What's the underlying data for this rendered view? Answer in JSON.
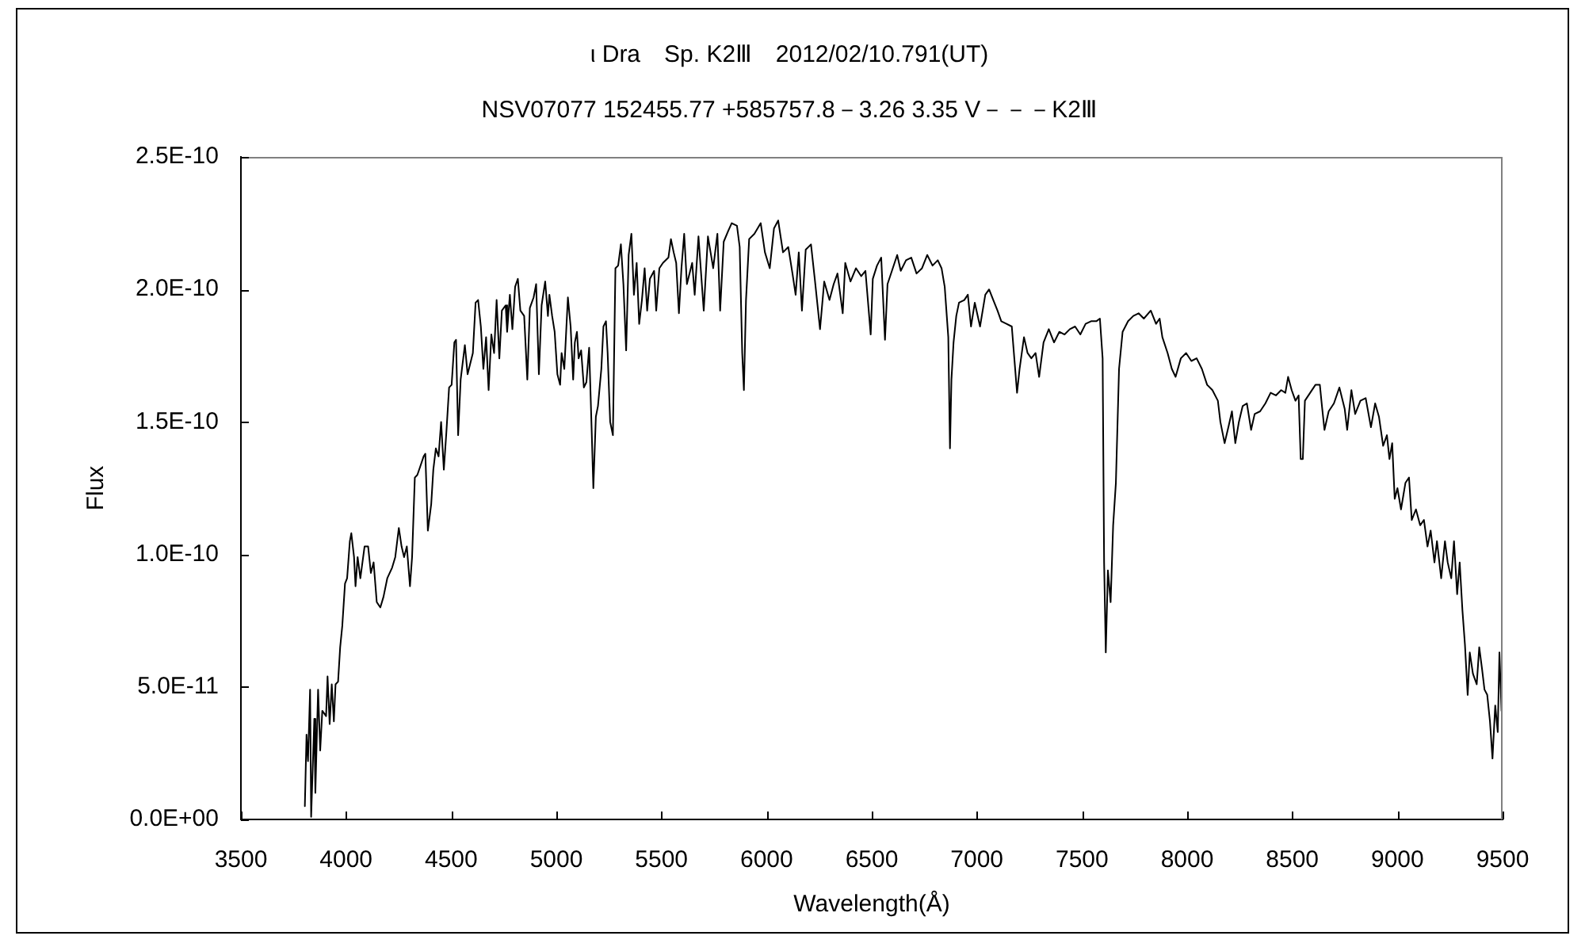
{
  "chart_data": {
    "type": "line",
    "title": "ι Dra　Sp. K2Ⅲ　2012/02/10.791(UT)",
    "subtitle": "NSV07077 152455.77 +585757.8－3.26 3.35 V－－－K2Ⅲ",
    "xlabel": "Wavelength(Å)",
    "ylabel": "Flux",
    "xlim": [
      3500,
      9500
    ],
    "xticks": [
      3500,
      4000,
      4500,
      5000,
      5500,
      6000,
      6500,
      7000,
      7500,
      8000,
      8500,
      9000,
      9500
    ],
    "ylim": [
      0,
      2.5e-10
    ],
    "yticks": [
      {
        "value": 0,
        "label": "0.0E+00"
      },
      {
        "value": 5e-11,
        "label": "5.0E-11"
      },
      {
        "value": 1e-10,
        "label": "1.0E-10"
      },
      {
        "value": 1.5e-10,
        "label": "1.5E-10"
      },
      {
        "value": 2e-10,
        "label": "2.0E-10"
      },
      {
        "value": 2.5e-10,
        "label": "2.5E-10"
      }
    ],
    "marker": "none",
    "line_style": "solid",
    "series": [
      {
        "color": "#000000",
        "x": [
          3804,
          3812,
          3819,
          3829,
          3834,
          3849,
          3854,
          3867,
          3877,
          3887,
          3905,
          3912,
          3922,
          3932,
          3942,
          3950,
          3962,
          3972,
          3982,
          3995,
          4005,
          4018,
          4025,
          4038,
          4045,
          4055,
          4068,
          4088,
          4105,
          4118,
          4131,
          4146,
          4163,
          4178,
          4196,
          4219,
          4234,
          4251,
          4264,
          4276,
          4289,
          4304,
          4314,
          4327,
          4339,
          4352,
          4369,
          4377,
          4389,
          4405,
          4415,
          4427,
          4440,
          4452,
          4465,
          4477,
          4490,
          4502,
          4515,
          4523,
          4533,
          4545,
          4565,
          4578,
          4603,
          4616,
          4628,
          4641,
          4653,
          4666,
          4678,
          4691,
          4704,
          4716,
          4729,
          4741,
          4759,
          4766,
          4779,
          4791,
          4804,
          4817,
          4829,
          4847,
          4862,
          4874,
          4892,
          4904,
          4917,
          4930,
          4947,
          4960,
          4967,
          4980,
          4992,
          5005,
          5018,
          5025,
          5038,
          5048,
          5055,
          5068,
          5080,
          5088,
          5098,
          5106,
          5118,
          5131,
          5143,
          5156,
          5168,
          5176,
          5188,
          5198,
          5214,
          5224,
          5236,
          5244,
          5256,
          5269,
          5281,
          5294,
          5307,
          5319,
          5332,
          5344,
          5357,
          5369,
          5382,
          5394,
          5407,
          5420,
          5432,
          5445,
          5465,
          5475,
          5490,
          5507,
          5533,
          5545,
          5558,
          5570,
          5583,
          5595,
          5608,
          5621,
          5646,
          5658,
          5676,
          5701,
          5721,
          5746,
          5766,
          5779,
          5796,
          5817,
          5834,
          5859,
          5872,
          5884,
          5892,
          5902,
          5917,
          5942,
          5972,
          5992,
          6015,
          6035,
          6055,
          6078,
          6103,
          6123,
          6138,
          6153,
          6168,
          6186,
          6211,
          6229,
          6254,
          6274,
          6299,
          6319,
          6337,
          6362,
          6374,
          6399,
          6425,
          6450,
          6470,
          6495,
          6505,
          6525,
          6545,
          6563,
          6575,
          6600,
          6621,
          6638,
          6663,
          6688,
          6713,
          6739,
          6764,
          6789,
          6814,
          6832,
          6847,
          6864,
          6872,
          6879,
          6889,
          6902,
          6915,
          6940,
          6957,
          6972,
          6990,
          7015,
          7040,
          7058,
          7078,
          7098,
          7116,
          7141,
          7166,
          7178,
          7191,
          7203,
          7224,
          7241,
          7259,
          7279,
          7296,
          7317,
          7342,
          7367,
          7392,
          7417,
          7442,
          7467,
          7492,
          7517,
          7543,
          7568,
          7585,
          7598,
          7605,
          7613,
          7623,
          7636,
          7648,
          7661,
          7676,
          7693,
          7719,
          7744,
          7769,
          7794,
          7827,
          7852,
          7869,
          7882,
          7907,
          7927,
          7945,
          7970,
          7995,
          8020,
          8045,
          8070,
          8095,
          8120,
          8146,
          8158,
          8178,
          8196,
          8213,
          8229,
          8246,
          8264,
          8284,
          8304,
          8321,
          8347,
          8372,
          8397,
          8422,
          8447,
          8467,
          8480,
          8497,
          8515,
          8530,
          8540,
          8550,
          8560,
          8585,
          8610,
          8631,
          8641,
          8653,
          8673,
          8698,
          8724,
          8749,
          8761,
          8781,
          8799,
          8824,
          8849,
          8874,
          8894,
          8912,
          8932,
          8950,
          8962,
          8975,
          8987,
          9000,
          9017,
          9038,
          9055,
          9068,
          9088,
          9108,
          9126,
          9143,
          9158,
          9176,
          9188,
          9208,
          9226,
          9239,
          9256,
          9269,
          9284,
          9296,
          9309,
          9321,
          9334,
          9344,
          9359,
          9377,
          9389,
          9402,
          9414,
          9427,
          9440,
          9452,
          9465,
          9477,
          9485,
          9495
        ],
        "values": [
          5e-12,
          3.2e-11,
          2.2e-11,
          4.9e-11,
          1e-12,
          3.8e-11,
          1e-11,
          4.9e-11,
          2.6e-11,
          4.1e-11,
          3.9e-11,
          5.4e-11,
          3.6e-11,
          5.1e-11,
          3.7e-11,
          5.1e-11,
          5.2e-11,
          6.5e-11,
          7.3e-11,
          8.9e-11,
          9.1e-11,
          1.05e-10,
          1.08e-10,
          9.9e-11,
          8.8e-11,
          9.9e-11,
          9.1e-11,
          1.03e-10,
          1.03e-10,
          9.3e-11,
          9.7e-11,
          8.2e-11,
          8e-11,
          8.4e-11,
          9.1e-11,
          9.5e-11,
          9.9e-11,
          1.1e-10,
          1.03e-10,
          9.9e-11,
          1.03e-10,
          8.8e-11,
          9.9e-11,
          1.29e-10,
          1.3e-10,
          1.33e-10,
          1.37e-10,
          1.38e-10,
          1.09e-10,
          1.19e-10,
          1.32e-10,
          1.4e-10,
          1.37e-10,
          1.5e-10,
          1.32e-10,
          1.46e-10,
          1.63e-10,
          1.64e-10,
          1.8e-10,
          1.81e-10,
          1.45e-10,
          1.66e-10,
          1.79e-10,
          1.68e-10,
          1.76e-10,
          1.95e-10,
          1.96e-10,
          1.86e-10,
          1.7e-10,
          1.82e-10,
          1.62e-10,
          1.83e-10,
          1.76e-10,
          1.96e-10,
          1.74e-10,
          1.92e-10,
          1.94e-10,
          1.84e-10,
          1.98e-10,
          1.85e-10,
          2.01e-10,
          2.04e-10,
          1.92e-10,
          1.9e-10,
          1.66e-10,
          1.93e-10,
          1.97e-10,
          2.02e-10,
          1.68e-10,
          1.94e-10,
          2.03e-10,
          1.9e-10,
          1.98e-10,
          1.9e-10,
          1.84e-10,
          1.68e-10,
          1.64e-10,
          1.76e-10,
          1.7e-10,
          1.86e-10,
          1.97e-10,
          1.86e-10,
          1.66e-10,
          1.8e-10,
          1.84e-10,
          1.74e-10,
          1.77e-10,
          1.63e-10,
          1.65e-10,
          1.78e-10,
          1.47e-10,
          1.25e-10,
          1.52e-10,
          1.56e-10,
          1.7e-10,
          1.86e-10,
          1.88e-10,
          1.76e-10,
          1.5e-10,
          1.45e-10,
          2.08e-10,
          2.09e-10,
          2.17e-10,
          2.02e-10,
          1.77e-10,
          2.13e-10,
          2.21e-10,
          1.98e-10,
          2.1e-10,
          1.87e-10,
          1.96e-10,
          2.08e-10,
          1.92e-10,
          2.04e-10,
          2.07e-10,
          1.92e-10,
          2.08e-10,
          2.1e-10,
          2.12e-10,
          2.19e-10,
          2.14e-10,
          2.1e-10,
          1.91e-10,
          2.08e-10,
          2.21e-10,
          2.02e-10,
          2.1e-10,
          1.98e-10,
          2.2e-10,
          1.92e-10,
          2.2e-10,
          2.08e-10,
          2.21e-10,
          1.92e-10,
          2.18e-10,
          2.22e-10,
          2.25e-10,
          2.24e-10,
          2.16e-10,
          1.76e-10,
          1.62e-10,
          1.96e-10,
          2.19e-10,
          2.21e-10,
          2.25e-10,
          2.14e-10,
          2.08e-10,
          2.23e-10,
          2.26e-10,
          2.14e-10,
          2.16e-10,
          2.06e-10,
          1.98e-10,
          2.14e-10,
          1.92e-10,
          2.15e-10,
          2.17e-10,
          2.04e-10,
          1.85e-10,
          2.03e-10,
          1.96e-10,
          2.02e-10,
          2.06e-10,
          1.91e-10,
          2.1e-10,
          2.03e-10,
          2.08e-10,
          2.05e-10,
          2.07e-10,
          1.83e-10,
          2.04e-10,
          2.09e-10,
          2.12e-10,
          1.81e-10,
          2.02e-10,
          2.08e-10,
          2.13e-10,
          2.07e-10,
          2.11e-10,
          2.12e-10,
          2.06e-10,
          2.08e-10,
          2.13e-10,
          2.09e-10,
          2.11e-10,
          2.08e-10,
          2.01e-10,
          1.82e-10,
          1.4e-10,
          1.66e-10,
          1.8e-10,
          1.9e-10,
          1.95e-10,
          1.96e-10,
          1.98e-10,
          1.86e-10,
          1.95e-10,
          1.86e-10,
          1.98e-10,
          2e-10,
          1.96e-10,
          1.92e-10,
          1.88e-10,
          1.87e-10,
          1.86e-10,
          1.74e-10,
          1.61e-10,
          1.7e-10,
          1.82e-10,
          1.76e-10,
          1.74e-10,
          1.76e-10,
          1.67e-10,
          1.8e-10,
          1.85e-10,
          1.8e-10,
          1.84e-10,
          1.83e-10,
          1.85e-10,
          1.86e-10,
          1.83e-10,
          1.87e-10,
          1.88e-10,
          1.88e-10,
          1.89e-10,
          1.74e-10,
          9.7e-11,
          6.3e-11,
          9.4e-11,
          8.2e-11,
          1.11e-10,
          1.27e-10,
          1.7e-10,
          1.84e-10,
          1.88e-10,
          1.9e-10,
          1.91e-10,
          1.89e-10,
          1.92e-10,
          1.87e-10,
          1.89e-10,
          1.82e-10,
          1.76e-10,
          1.7e-10,
          1.67e-10,
          1.74e-10,
          1.76e-10,
          1.73e-10,
          1.74e-10,
          1.7e-10,
          1.64e-10,
          1.62e-10,
          1.58e-10,
          1.5e-10,
          1.42e-10,
          1.48e-10,
          1.54e-10,
          1.42e-10,
          1.5e-10,
          1.56e-10,
          1.57e-10,
          1.47e-10,
          1.53e-10,
          1.54e-10,
          1.57e-10,
          1.61e-10,
          1.6e-10,
          1.62e-10,
          1.61e-10,
          1.67e-10,
          1.62e-10,
          1.58e-10,
          1.6e-10,
          1.36e-10,
          1.36e-10,
          1.58e-10,
          1.61e-10,
          1.64e-10,
          1.64e-10,
          1.56e-10,
          1.47e-10,
          1.54e-10,
          1.57e-10,
          1.63e-10,
          1.55e-10,
          1.47e-10,
          1.62e-10,
          1.53e-10,
          1.58e-10,
          1.59e-10,
          1.48e-10,
          1.57e-10,
          1.52e-10,
          1.41e-10,
          1.45e-10,
          1.36e-10,
          1.42e-10,
          1.21e-10,
          1.25e-10,
          1.17e-10,
          1.27e-10,
          1.29e-10,
          1.13e-10,
          1.17e-10,
          1.11e-10,
          1.13e-10,
          1.03e-10,
          1.09e-10,
          9.7e-11,
          1.05e-10,
          9.1e-11,
          1.05e-10,
          9.7e-11,
          9.1e-11,
          1.05e-10,
          8.5e-11,
          9.7e-11,
          7.9e-11,
          6.6e-11,
          4.7e-11,
          6.3e-11,
          5.5e-11,
          5.1e-11,
          6.5e-11,
          5.7e-11,
          4.9e-11,
          4.7e-11,
          3.7e-11,
          2.3e-11,
          4.3e-11,
          3.3e-11,
          6.3e-11,
          4.1e-11
        ]
      }
    ]
  }
}
